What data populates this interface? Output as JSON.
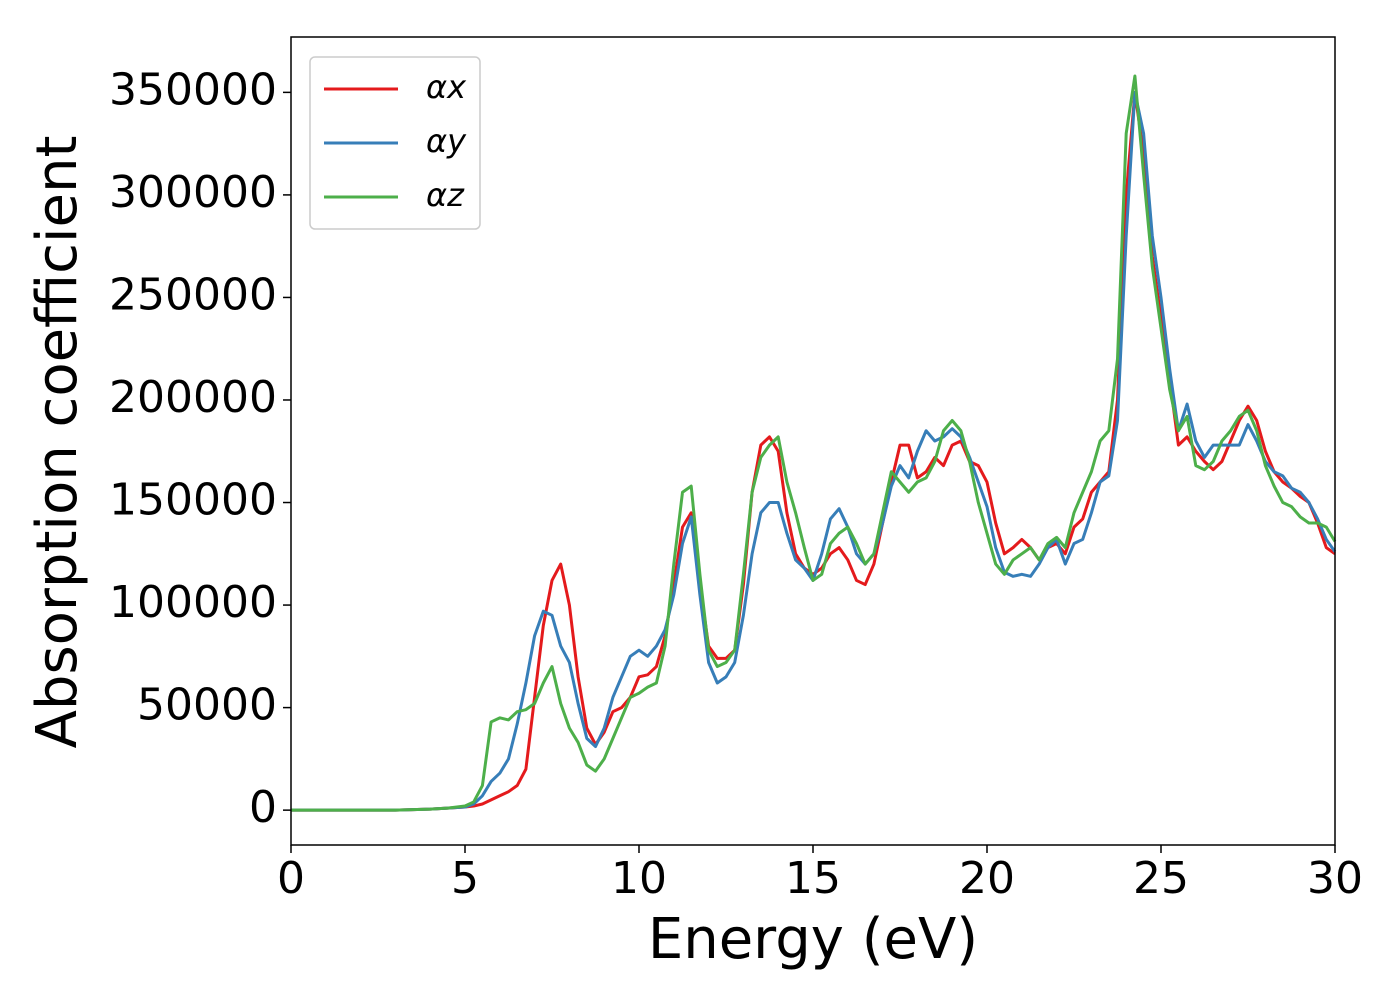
{
  "chart_data": {
    "type": "line",
    "xlabel": "Energy (eV)",
    "ylabel": "Absorption coefficient",
    "x": [
      0,
      1,
      2,
      3,
      4,
      4.5,
      5,
      5.25,
      5.5,
      5.75,
      6,
      6.25,
      6.5,
      6.75,
      7,
      7.25,
      7.5,
      7.75,
      8,
      8.25,
      8.5,
      8.75,
      9,
      9.25,
      9.5,
      9.75,
      10,
      10.25,
      10.5,
      10.75,
      11,
      11.25,
      11.5,
      11.75,
      12,
      12.25,
      12.5,
      12.75,
      13,
      13.25,
      13.5,
      13.75,
      14,
      14.25,
      14.5,
      14.75,
      15,
      15.25,
      15.5,
      15.75,
      16,
      16.25,
      16.5,
      16.75,
      17,
      17.25,
      17.5,
      17.75,
      18,
      18.25,
      18.5,
      18.75,
      19,
      19.25,
      19.5,
      19.75,
      20,
      20.25,
      20.5,
      20.75,
      21,
      21.25,
      21.5,
      21.75,
      22,
      22.25,
      22.5,
      22.75,
      23,
      23.25,
      23.5,
      23.75,
      24,
      24.25,
      24.5,
      24.75,
      25,
      25.25,
      25.5,
      25.75,
      26,
      26.25,
      26.5,
      26.75,
      27,
      27.25,
      27.5,
      27.75,
      28,
      28.25,
      28.5,
      28.75,
      29,
      29.25,
      29.5,
      29.75,
      30
    ],
    "series": [
      {
        "name": "αx",
        "color": "#e41a1c",
        "values": [
          0,
          0,
          0,
          0,
          500,
          1000,
          1500,
          2000,
          3000,
          5000,
          7000,
          9000,
          12000,
          20000,
          55000,
          90000,
          112000,
          120000,
          100000,
          65000,
          40000,
          32000,
          38000,
          48000,
          50000,
          55000,
          65000,
          66000,
          70000,
          85000,
          110000,
          138000,
          145000,
          110000,
          80000,
          74000,
          74000,
          78000,
          110000,
          155000,
          178000,
          182000,
          175000,
          145000,
          125000,
          118000,
          115000,
          118000,
          125000,
          128000,
          122000,
          112000,
          110000,
          120000,
          140000,
          160000,
          178000,
          178000,
          162000,
          165000,
          172000,
          168000,
          178000,
          180000,
          170000,
          168000,
          160000,
          140000,
          125000,
          128000,
          132000,
          128000,
          122000,
          128000,
          130000,
          125000,
          138000,
          142000,
          155000,
          160000,
          165000,
          200000,
          300000,
          350000,
          320000,
          270000,
          240000,
          210000,
          178000,
          182000,
          175000,
          170000,
          166000,
          170000,
          180000,
          190000,
          197000,
          190000,
          175000,
          165000,
          160000,
          157000,
          153000,
          150000,
          140000,
          128000,
          125000
        ]
      },
      {
        "name": "αy",
        "color": "#377eb8",
        "values": [
          0,
          0,
          0,
          0,
          500,
          1000,
          1500,
          3000,
          7000,
          14000,
          18000,
          25000,
          42000,
          62000,
          85000,
          97000,
          95000,
          80000,
          72000,
          52000,
          35000,
          31000,
          40000,
          55000,
          65000,
          75000,
          78000,
          75000,
          80000,
          88000,
          105000,
          130000,
          143000,
          105000,
          72000,
          62000,
          65000,
          72000,
          95000,
          125000,
          145000,
          150000,
          150000,
          135000,
          122000,
          118000,
          112000,
          125000,
          142000,
          147000,
          138000,
          125000,
          120000,
          125000,
          140000,
          158000,
          168000,
          162000,
          175000,
          185000,
          180000,
          182000,
          186000,
          182000,
          172000,
          160000,
          148000,
          128000,
          116000,
          114000,
          115000,
          114000,
          120000,
          128000,
          132000,
          120000,
          130000,
          132000,
          145000,
          160000,
          163000,
          190000,
          280000,
          350000,
          330000,
          280000,
          250000,
          215000,
          185000,
          198000,
          180000,
          172000,
          178000,
          178000,
          178000,
          178000,
          188000,
          180000,
          170000,
          165000,
          163000,
          157000,
          155000,
          150000,
          142000,
          132000,
          126000
        ]
      },
      {
        "name": "αz",
        "color": "#4daf4a",
        "values": [
          0,
          0,
          0,
          0,
          500,
          1000,
          2000,
          4000,
          12000,
          43000,
          45000,
          44000,
          48000,
          49000,
          52000,
          62000,
          70000,
          52000,
          40000,
          33000,
          22000,
          19000,
          25000,
          35000,
          45000,
          55000,
          57000,
          60000,
          62000,
          80000,
          120000,
          155000,
          158000,
          115000,
          78000,
          70000,
          72000,
          78000,
          115000,
          155000,
          172000,
          178000,
          182000,
          160000,
          145000,
          128000,
          112000,
          115000,
          130000,
          135000,
          138000,
          130000,
          120000,
          125000,
          145000,
          165000,
          160000,
          155000,
          160000,
          162000,
          170000,
          185000,
          190000,
          185000,
          170000,
          150000,
          135000,
          120000,
          115000,
          122000,
          125000,
          128000,
          122000,
          130000,
          133000,
          128000,
          145000,
          155000,
          165000,
          180000,
          185000,
          220000,
          330000,
          358000,
          310000,
          265000,
          235000,
          205000,
          185000,
          192000,
          168000,
          166000,
          170000,
          180000,
          185000,
          192000,
          195000,
          185000,
          168000,
          158000,
          150000,
          148000,
          143000,
          140000,
          140000,
          138000,
          131000
        ]
      }
    ],
    "xlim": [
      0,
      30
    ],
    "xticks": [
      0,
      5,
      10,
      15,
      20,
      25,
      30
    ],
    "ylim": [
      -17000,
      377000
    ],
    "yticks": [
      0,
      50000,
      100000,
      150000,
      200000,
      250000,
      300000,
      350000
    ],
    "legend": "upper left"
  }
}
